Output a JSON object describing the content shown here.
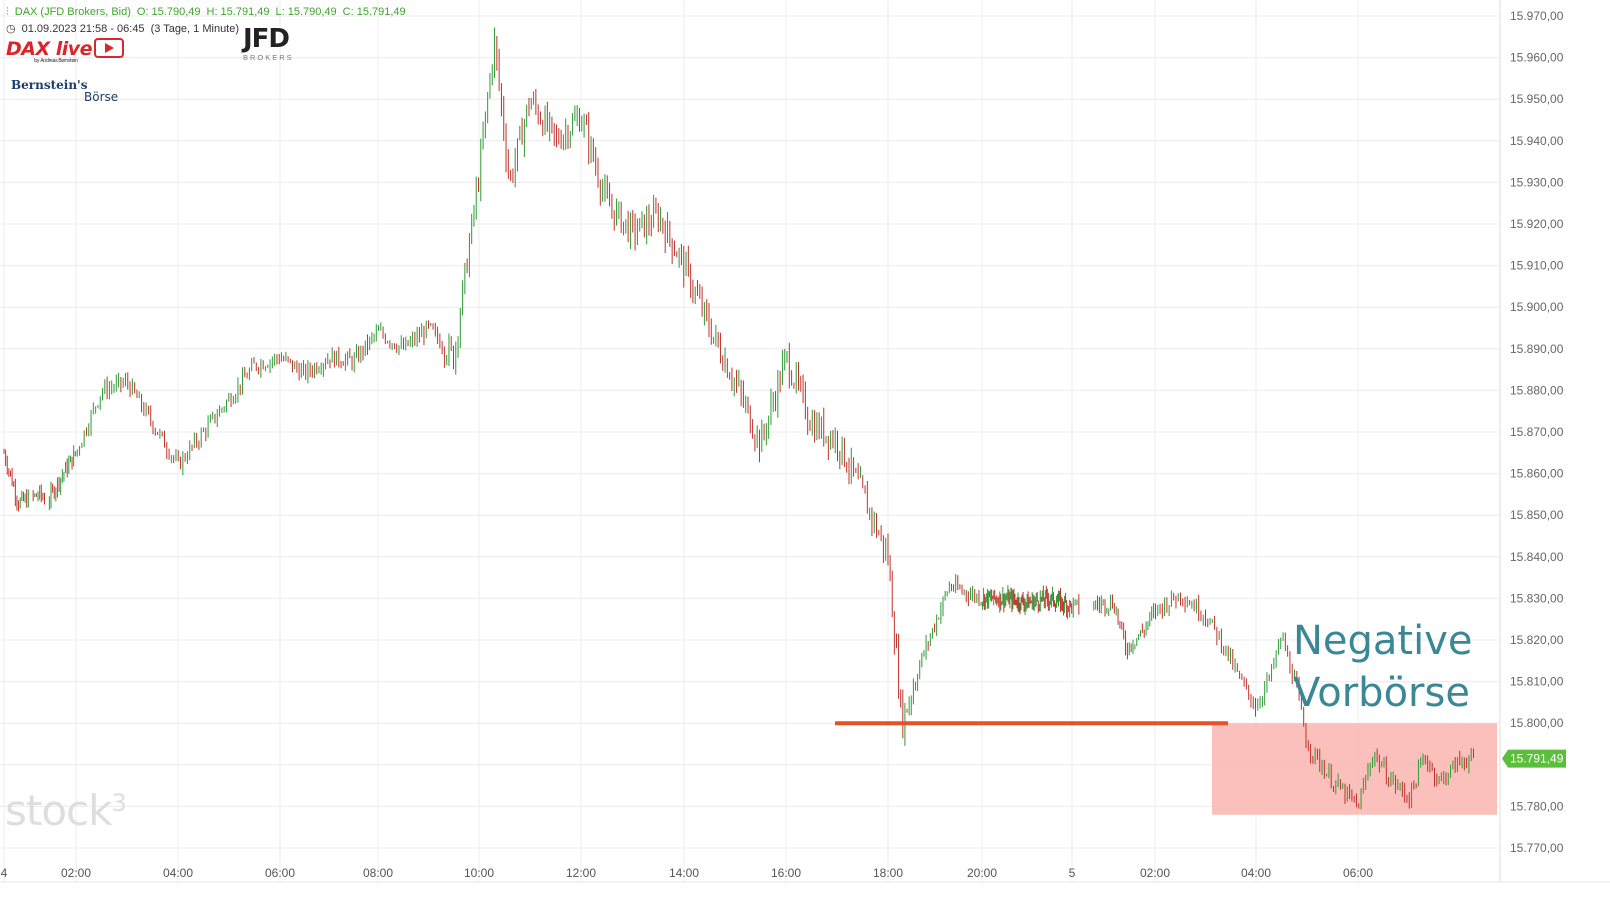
{
  "header": {
    "instrument": "DAX (JFD Brokers, Bid)",
    "open": "O: 15.790,49",
    "high": "H: 15.791,49",
    "low": "L: 15.790,49",
    "close": "C: 15.791,49",
    "timerange": "01.09.2023 21:58 - 06:45",
    "interval": "(3 Tage, 1 Minute)"
  },
  "logos": {
    "daxlive": "DAX live",
    "daxlive_sub": "by Andreas Bernstein",
    "bernstein": "Bernstein's",
    "boerse": "Börse",
    "jfd": "JFD",
    "jfd_sub": "BROKERS",
    "watermark": "stock",
    "watermark_sup": "3"
  },
  "annotation": {
    "line1": "Negative",
    "line2": "Vorbörse"
  },
  "colors": {
    "up": "#2e9a36",
    "down": "#c0312b",
    "support_line": "#e8502a",
    "zone_fill": "#fbb9b5",
    "last_price_badge": "#5cbf3c",
    "annotation": "#3a8796",
    "grid": "#ececec"
  },
  "chart_data": {
    "type": "candlestick",
    "title": "DAX (JFD Brokers, Bid)",
    "interval": "1 Minute",
    "ylim": [
      15767,
      15972
    ],
    "y_ticks": [
      15970,
      15960,
      15950,
      15940,
      15930,
      15920,
      15910,
      15900,
      15890,
      15880,
      15870,
      15860,
      15850,
      15840,
      15830,
      15820,
      15810,
      15800,
      15790,
      15780,
      15770
    ],
    "y_tick_labels": [
      "15.970,00",
      "15.960,00",
      "15.950,00",
      "15.940,00",
      "15.930,00",
      "15.920,00",
      "15.910,00",
      "15.900,00",
      "15.890,00",
      "15.880,00",
      "15.870,00",
      "15.860,00",
      "15.850,00",
      "15.840,00",
      "15.830,00",
      "15.820,00",
      "15.810,00",
      "15.800,00",
      null,
      "15.780,00",
      "15.770,00"
    ],
    "x_tick_labels": [
      "4",
      "02:00",
      "04:00",
      "06:00",
      "08:00",
      "10:00",
      "12:00",
      "14:00",
      "16:00",
      "18:00",
      "20:00",
      "5",
      "02:00",
      "04:00",
      "06:00"
    ],
    "grid": true,
    "last_price": 15791.49,
    "last_price_label": "15.791,49",
    "support_level": 15800,
    "highlight_zone": {
      "y_from": 15778,
      "y_to": 15800
    },
    "price_path": [
      [
        0,
        15865
      ],
      [
        0.4,
        15853
      ],
      [
        1.0,
        15855
      ],
      [
        1.2,
        15853
      ],
      [
        1.5,
        15858
      ],
      [
        2.0,
        15865
      ],
      [
        2.5,
        15880
      ],
      [
        3.0,
        15882
      ],
      [
        3.5,
        15872
      ],
      [
        4.0,
        15862
      ],
      [
        4.5,
        15870
      ],
      [
        5.0,
        15878
      ],
      [
        5.5,
        15886
      ],
      [
        6.0,
        15888
      ],
      [
        6.5,
        15884
      ],
      [
        7.0,
        15888
      ],
      [
        7.5,
        15887
      ],
      [
        8.0,
        15894
      ],
      [
        8.5,
        15890
      ],
      [
        9.0,
        15895
      ],
      [
        9.5,
        15888
      ],
      [
        10.0,
        15932
      ],
      [
        10.3,
        15964
      ],
      [
        10.6,
        15930
      ],
      [
        11.0,
        15950
      ],
      [
        11.5,
        15940
      ],
      [
        12.0,
        15946
      ],
      [
        12.5,
        15925
      ],
      [
        13.0,
        15918
      ],
      [
        13.5,
        15922
      ],
      [
        14.0,
        15910
      ],
      [
        14.5,
        15895
      ],
      [
        15.0,
        15882
      ],
      [
        15.5,
        15867
      ],
      [
        16.0,
        15888
      ],
      [
        16.5,
        15872
      ],
      [
        17.0,
        15868
      ],
      [
        17.5,
        15855
      ],
      [
        18.0,
        15840
      ],
      [
        18.3,
        15800
      ],
      [
        18.7,
        15815
      ],
      [
        19.0,
        15824
      ],
      [
        19.3,
        15833
      ],
      [
        20.0,
        15830
      ],
      [
        21.0,
        15830
      ],
      [
        22.0,
        15829
      ],
      [
        23.0,
        15830
      ],
      [
        24.0,
        15828
      ],
      [
        25.0,
        15829
      ],
      [
        25.3,
        15818
      ],
      [
        25.7,
        15822
      ],
      [
        26.0,
        15827
      ],
      [
        26.5,
        15831
      ],
      [
        27.0,
        15826
      ],
      [
        27.3,
        15820
      ],
      [
        27.7,
        15810
      ],
      [
        28.0,
        15804
      ],
      [
        28.3,
        15812
      ],
      [
        28.5,
        15821
      ],
      [
        28.8,
        15808
      ],
      [
        29.0,
        15795
      ],
      [
        29.5,
        15786
      ],
      [
        30.0,
        15780
      ],
      [
        30.3,
        15793
      ],
      [
        30.6,
        15787
      ],
      [
        31.0,
        15782
      ],
      [
        31.3,
        15792
      ],
      [
        31.6,
        15786
      ],
      [
        32.0,
        15791
      ],
      [
        32.3,
        15791.49
      ]
    ]
  }
}
